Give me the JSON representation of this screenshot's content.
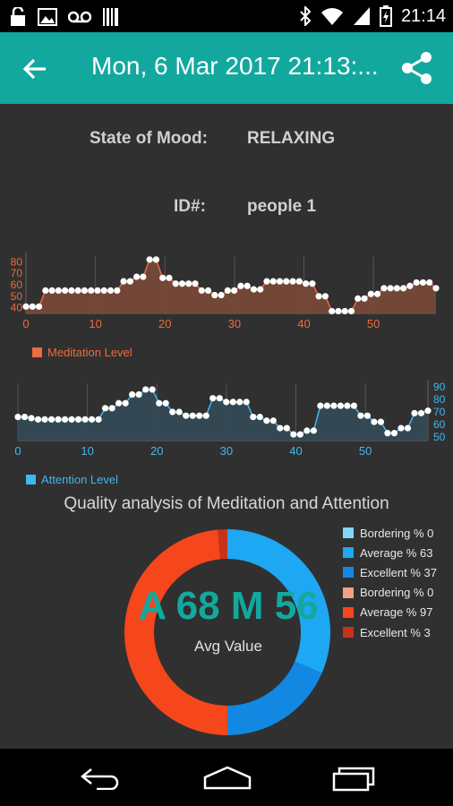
{
  "status_bar": {
    "time": "21:14",
    "icons": [
      "lock-icon",
      "image-icon",
      "voicemail-icon",
      "barcode-icon",
      "bluetooth-icon",
      "wifi-icon",
      "signal-icon",
      "battery-icon"
    ]
  },
  "app_bar": {
    "title": "Mon, 6 Mar 2017 21:13:...",
    "back_icon": "arrow-back-icon",
    "share_icon": "share-icon",
    "color": "#13a89e"
  },
  "info": {
    "mood_label": "State of Mood:",
    "mood_value": "RELAXING",
    "id_label": "ID#:",
    "id_value": "people 1"
  },
  "chart_data": [
    {
      "type": "area",
      "legend": "Meditation Level",
      "color": "#ef6a3c",
      "fill": "#7a4a3a",
      "x_ticks": [
        "0",
        "10",
        "20",
        "30",
        "40",
        "50"
      ],
      "y_ticks": [
        "40",
        "50",
        "60",
        "70",
        "80"
      ],
      "xlim": [
        0,
        59
      ],
      "ylim": [
        35,
        85
      ],
      "values": [
        41,
        41,
        41,
        55,
        55,
        55,
        55,
        55,
        55,
        55,
        55,
        55,
        55,
        55,
        55,
        63,
        63,
        67,
        67,
        82,
        82,
        66,
        66,
        61,
        61,
        61,
        61,
        55,
        55,
        51,
        51,
        55,
        55,
        59,
        59,
        56,
        56,
        63,
        63,
        63,
        63,
        63,
        63,
        61,
        61,
        50,
        50,
        37,
        37,
        37,
        37,
        48,
        48,
        52,
        52,
        57,
        57,
        57,
        57,
        59,
        62,
        62,
        62,
        57
      ]
    },
    {
      "type": "area",
      "legend": "Attention Level",
      "color": "#3fb8f0",
      "fill": "#344b57",
      "x_ticks": [
        "0",
        "10",
        "20",
        "30",
        "40",
        "50"
      ],
      "y_ticks": [
        "50",
        "60",
        "70",
        "80",
        "90"
      ],
      "xlim": [
        0,
        59
      ],
      "ylim": [
        47,
        93
      ],
      "values": [
        66,
        66,
        65,
        64,
        64,
        64,
        64,
        64,
        64,
        64,
        64,
        64,
        64,
        73,
        73,
        77,
        77,
        84,
        84,
        88,
        88,
        77,
        77,
        70,
        70,
        67,
        67,
        67,
        67,
        81,
        81,
        78,
        78,
        78,
        78,
        66,
        66,
        63,
        63,
        57,
        57,
        52,
        52,
        55,
        55,
        75,
        75,
        75,
        75,
        75,
        75,
        67,
        67,
        62,
        62,
        53,
        53,
        57,
        57,
        69,
        69,
        71
      ]
    },
    {
      "type": "pie",
      "title": "Quality analysis of Meditation and Attention",
      "center_text": "A 68 M 56",
      "center_subtext": "Avg Value",
      "series": [
        {
          "name": "Attention",
          "slices": [
            {
              "label": "Bordering % 0",
              "value": 0,
              "color": "#81d4fa"
            },
            {
              "label": "Average % 63",
              "value": 63,
              "color": "#1ea7f2"
            },
            {
              "label": "Excellent % 37",
              "value": 37,
              "color": "#1288e3"
            }
          ]
        },
        {
          "name": "Meditation",
          "slices": [
            {
              "label": "Bordering % 0",
              "value": 0,
              "color": "#f2a088"
            },
            {
              "label": "Average % 97",
              "value": 97,
              "color": "#f6461c"
            },
            {
              "label": "Excellent % 3",
              "value": 3,
              "color": "#c8311a"
            }
          ]
        }
      ]
    }
  ],
  "nav_bar": {
    "back_icon": "back-nav-icon",
    "home_icon": "home-nav-icon",
    "recents_icon": "recents-nav-icon"
  }
}
